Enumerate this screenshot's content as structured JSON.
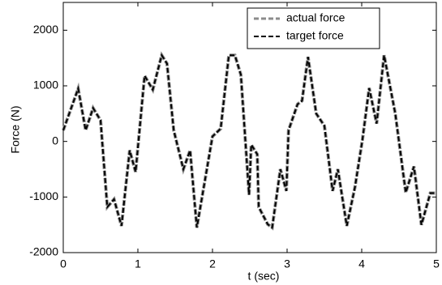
{
  "chart_data": {
    "type": "line",
    "x_label": "t (sec)",
    "y_label": "Force (N)",
    "x": [
      0,
      0.2,
      0.3,
      0.4,
      0.5,
      0.59,
      0.68,
      0.78,
      0.89,
      0.97,
      1.09,
      1.2,
      1.32,
      1.39,
      1.48,
      1.61,
      1.7,
      1.79,
      2.0,
      2.11,
      2.22,
      2.3,
      2.38,
      2.49,
      2.52,
      2.6,
      2.62,
      2.74,
      2.8,
      2.91,
      2.99,
      3.02,
      3.14,
      3.2,
      3.28,
      3.39,
      3.5,
      3.61,
      3.68,
      3.8,
      3.91,
      4.01,
      4.1,
      4.2,
      4.3,
      4.45,
      4.59,
      4.7,
      4.8,
      4.92,
      5.0
    ],
    "series": [
      {
        "name": "actual force",
        "color": "#8c8c8c",
        "dash": true,
        "values": [
          200,
          950,
          200,
          600,
          380,
          -1180,
          -1040,
          -1520,
          -160,
          -550,
          1180,
          930,
          1550,
          1400,
          200,
          -500,
          -160,
          -1550,
          90,
          230,
          1550,
          1550,
          1200,
          -960,
          -60,
          -230,
          -1180,
          -1490,
          -1550,
          -500,
          -890,
          200,
          670,
          730,
          1520,
          500,
          280,
          -890,
          -500,
          -1520,
          -820,
          30,
          960,
          320,
          1550,
          500,
          -920,
          -450,
          -1500,
          -930,
          -930
        ]
      },
      {
        "name": "target force",
        "color": "#000000",
        "dash": true,
        "values": [
          200,
          950,
          200,
          600,
          380,
          -1180,
          -1040,
          -1520,
          -160,
          -550,
          1180,
          930,
          1550,
          1400,
          200,
          -500,
          -160,
          -1550,
          90,
          230,
          1550,
          1550,
          1200,
          -960,
          -60,
          -230,
          -1180,
          -1490,
          -1550,
          -500,
          -890,
          200,
          670,
          730,
          1520,
          500,
          280,
          -890,
          -500,
          -1520,
          -820,
          30,
          960,
          320,
          1550,
          500,
          -920,
          -450,
          -1500,
          -930,
          -930
        ]
      }
    ],
    "xlim": [
      0,
      5
    ],
    "xticks": [
      0,
      1,
      2,
      3,
      4,
      5
    ],
    "ylim": [
      -2000,
      2500
    ],
    "yticks": [
      -2000,
      -1000,
      0,
      1000,
      2000
    ],
    "grid": false,
    "legend": "upper right"
  }
}
